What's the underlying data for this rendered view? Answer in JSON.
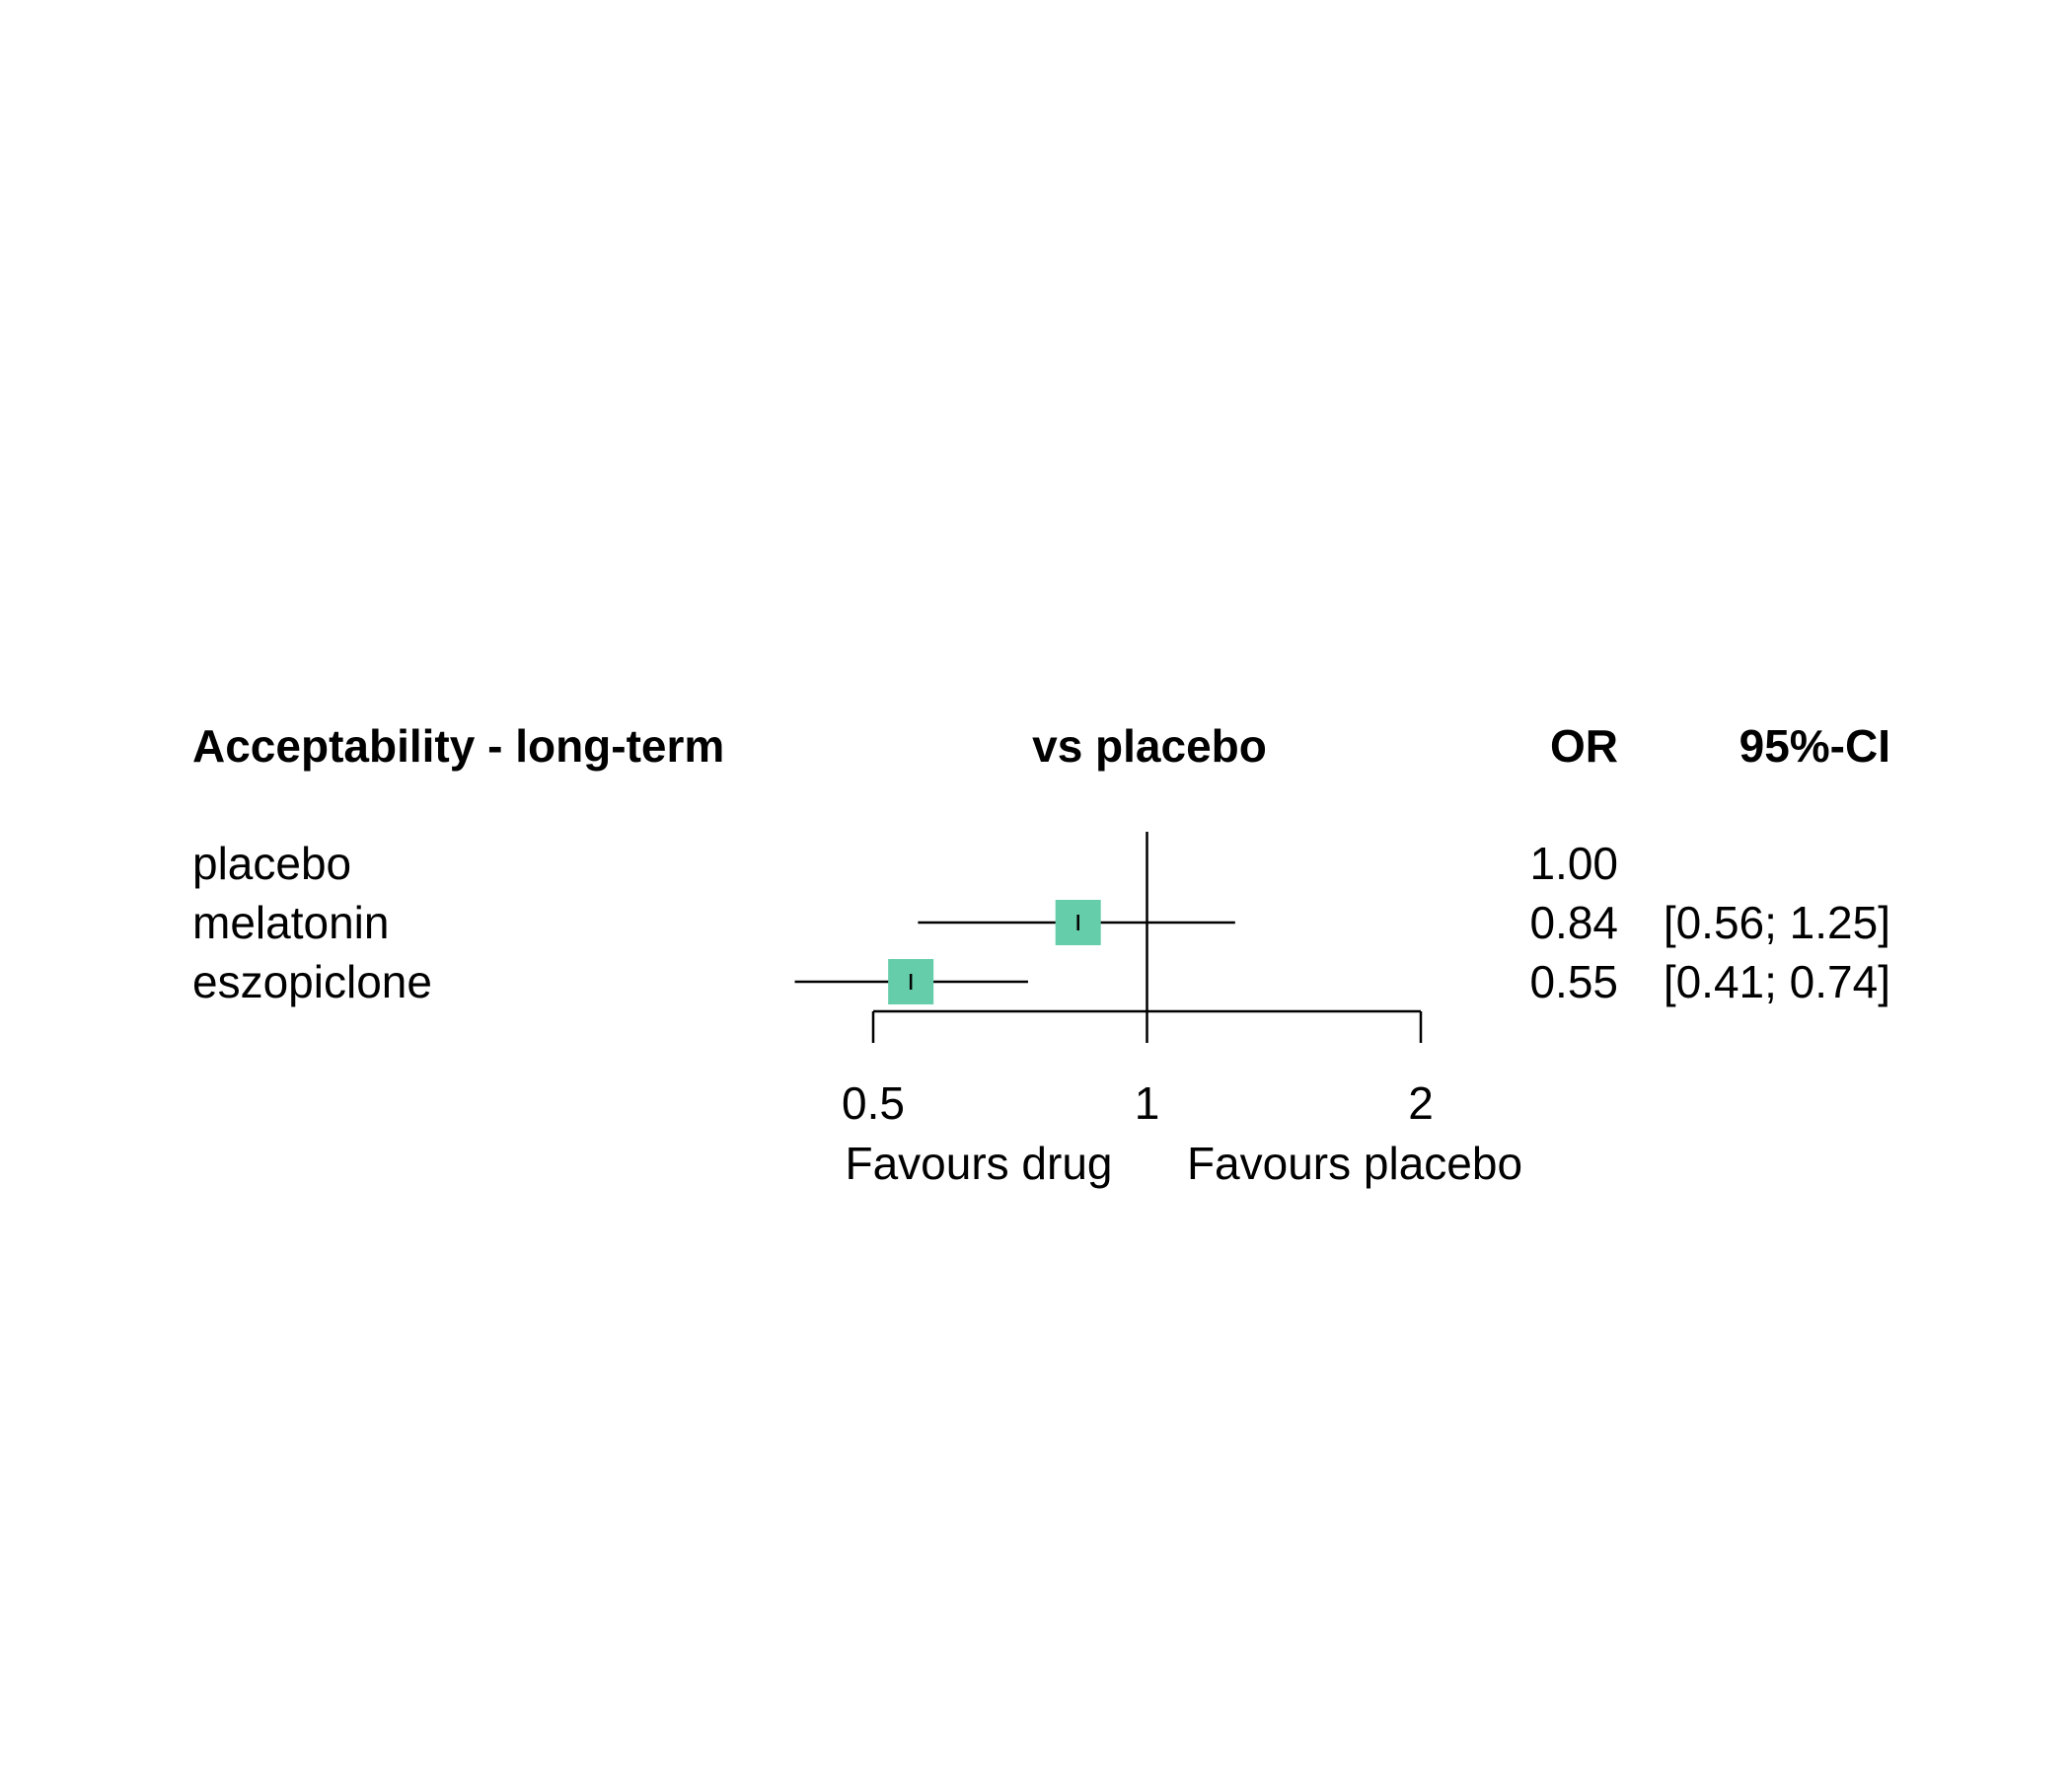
{
  "chart_data": {
    "type": "forest",
    "title": "Acceptability - long-term",
    "comparison_label": "vs placebo",
    "effect_label": "OR",
    "ci_label": "95%-CI",
    "scale": "log",
    "xlim": [
      0.5,
      2
    ],
    "reference_value": 1,
    "ticks": [
      {
        "value": 0.5,
        "label": "0.5"
      },
      {
        "value": 1,
        "label": "1"
      },
      {
        "value": 2,
        "label": "2"
      }
    ],
    "favours_left": "Favours drug",
    "favours_right": "Favours placebo",
    "marker_color": "#66CDAA",
    "rows": [
      {
        "name": "placebo",
        "or": 1.0,
        "or_text": "1.00",
        "ci_text": "",
        "lower": null,
        "upper": null
      },
      {
        "name": "melatonin",
        "or": 0.84,
        "or_text": "0.84",
        "ci_text": "[0.56; 1.25]",
        "lower": 0.56,
        "upper": 1.25
      },
      {
        "name": "eszopiclone",
        "or": 0.55,
        "or_text": "0.55",
        "ci_text": "[0.41; 0.74]",
        "lower": 0.41,
        "upper": 0.74
      }
    ]
  }
}
